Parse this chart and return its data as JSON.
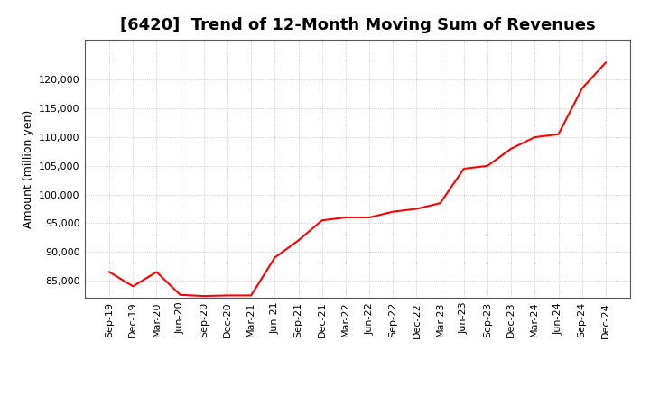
{
  "title": "[6420]  Trend of 12-Month Moving Sum of Revenues",
  "ylabel": "Amount (million yen)",
  "line_color": "#FF0000",
  "background_color": "#FFFFFF",
  "grid_color": "#BBBBBB",
  "x_labels": [
    "Sep-19",
    "Dec-19",
    "Mar-20",
    "Jun-20",
    "Sep-20",
    "Dec-20",
    "Mar-21",
    "Jun-21",
    "Sep-21",
    "Dec-21",
    "Mar-22",
    "Jun-22",
    "Sep-22",
    "Dec-22",
    "Mar-23",
    "Jun-23",
    "Sep-23",
    "Dec-23",
    "Mar-24",
    "Jun-24",
    "Sep-24",
    "Dec-24"
  ],
  "values": [
    86500,
    84000,
    86500,
    82500,
    82300,
    82400,
    82400,
    89000,
    92000,
    95500,
    96000,
    96000,
    97000,
    97500,
    98500,
    104500,
    105000,
    108000,
    110000,
    110500,
    118500,
    123000
  ],
  "ylim": [
    82000,
    127000
  ],
  "yticks": [
    85000,
    90000,
    95000,
    100000,
    105000,
    110000,
    115000,
    120000
  ],
  "title_fontsize": 13,
  "label_fontsize": 9,
  "tick_fontsize": 8
}
